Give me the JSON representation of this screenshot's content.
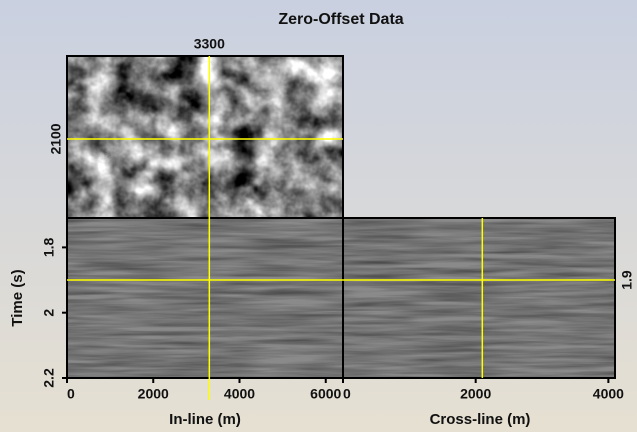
{
  "chart_data": {
    "type": "seismic-cube",
    "title": "Zero-Offset Data",
    "color": "#ffff00",
    "inline": {
      "label": "In-line (m)",
      "xlim": [
        0,
        6400
      ],
      "xticks": [
        0,
        2000,
        4000,
        6000
      ],
      "slice": 3300
    },
    "crossline": {
      "label": "Cross-line (m)",
      "xlim": [
        0,
        4100
      ],
      "xticks": [
        0,
        2000,
        4000
      ],
      "slice": 2100
    },
    "time": {
      "label": "Time (s)",
      "ylim": [
        1.71,
        2.2
      ],
      "yticks": [
        1.8,
        2,
        2.2
      ],
      "slice": 1.9
    }
  }
}
